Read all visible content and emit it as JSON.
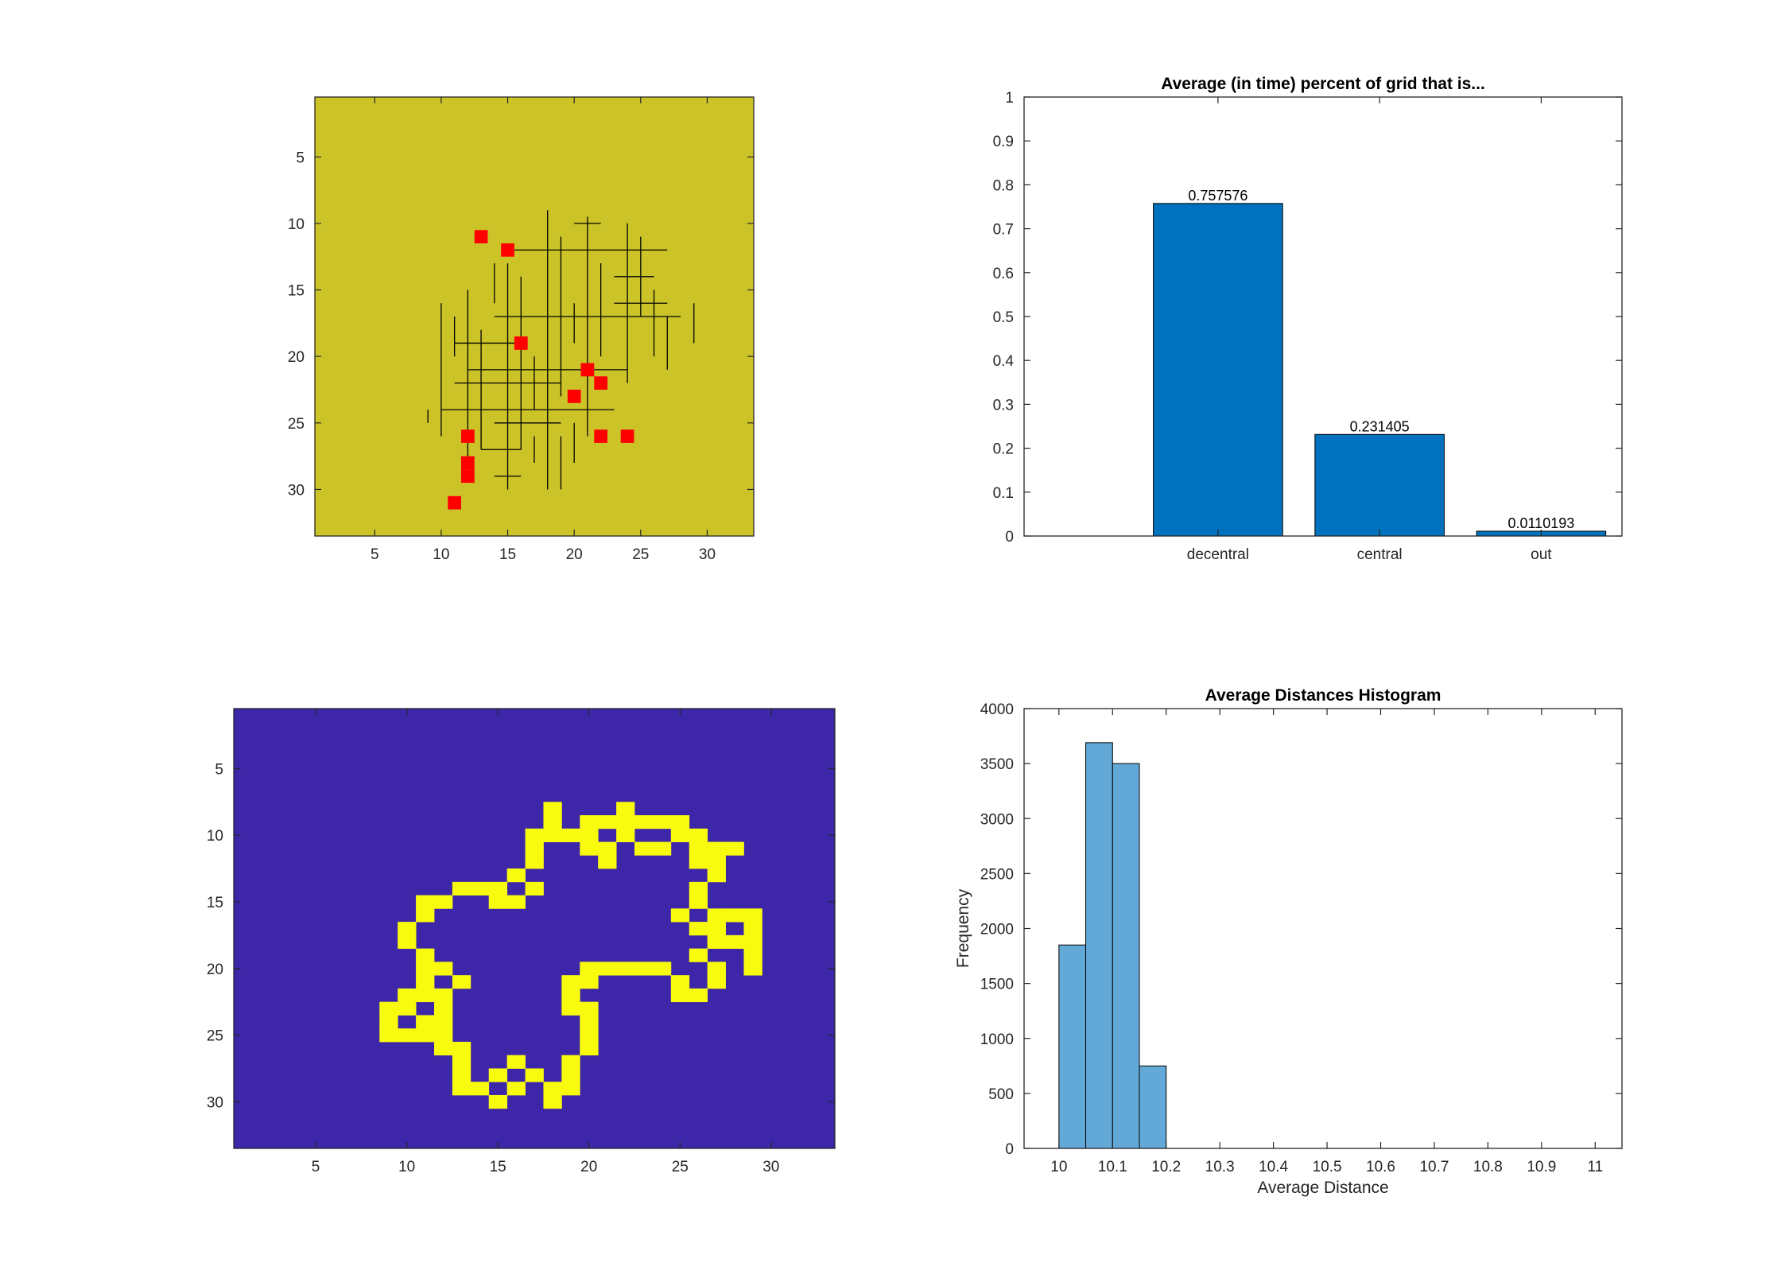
{
  "colors": {
    "yellow_bg": "#CBC328",
    "red_cell": "#FF0000",
    "blue_bg": "#3D26A8",
    "yellow_cell": "#F9FB0E",
    "bar_dark": "#0072BD",
    "hist_bar": "#63A9D8",
    "axis": "#262626"
  },
  "chart_data": [
    {
      "type": "heatmap",
      "panel": "top-left",
      "xlim": [
        0.5,
        33.5
      ],
      "ylim": [
        0.5,
        33.5
      ],
      "y_reversed": true,
      "xticks": [
        5,
        10,
        15,
        20,
        25,
        30
      ],
      "yticks": [
        5,
        10,
        15,
        20,
        25,
        30
      ],
      "red_cells": [
        [
          13,
          11
        ],
        [
          15,
          12
        ],
        [
          16,
          19
        ],
        [
          21,
          21
        ],
        [
          22,
          22
        ],
        [
          20,
          23
        ],
        [
          12,
          26
        ],
        [
          22,
          26
        ],
        [
          24,
          26
        ],
        [
          12,
          28
        ],
        [
          12,
          29
        ],
        [
          11,
          31
        ]
      ],
      "network_segments": [
        [
          [
            18,
            9
          ],
          [
            18,
            30
          ]
        ],
        [
          [
            15,
            12
          ],
          [
            27,
            12
          ]
        ],
        [
          [
            14,
            17
          ],
          [
            28,
            17
          ]
        ],
        [
          [
            12,
            21
          ],
          [
            24,
            21
          ]
        ],
        [
          [
            10,
            24
          ],
          [
            23,
            24
          ]
        ],
        [
          [
            12,
            15
          ],
          [
            12,
            28
          ]
        ],
        [
          [
            21,
            9.5
          ],
          [
            21,
            26
          ]
        ],
        [
          [
            24,
            10
          ],
          [
            24,
            22
          ]
        ],
        [
          [
            15,
            13
          ],
          [
            15,
            30
          ]
        ],
        [
          [
            10,
            16
          ],
          [
            10,
            26
          ]
        ],
        [
          [
            19,
            11
          ],
          [
            19,
            23
          ]
        ],
        [
          [
            16,
            14
          ],
          [
            16,
            27
          ]
        ],
        [
          [
            22,
            13
          ],
          [
            22,
            20
          ]
        ],
        [
          [
            13,
            18
          ],
          [
            13,
            27
          ]
        ],
        [
          [
            26,
            15
          ],
          [
            26,
            20
          ]
        ],
        [
          [
            11,
            19
          ],
          [
            16,
            19
          ]
        ],
        [
          [
            20,
            10
          ],
          [
            22,
            10
          ]
        ],
        [
          [
            17,
            26
          ],
          [
            17,
            28
          ]
        ],
        [
          [
            19,
            26
          ],
          [
            19,
            30
          ]
        ],
        [
          [
            14,
            29
          ],
          [
            16,
            29
          ]
        ],
        [
          [
            23,
            16
          ],
          [
            27,
            16
          ]
        ],
        [
          [
            11,
            22
          ],
          [
            19,
            22
          ]
        ],
        [
          [
            9,
            24
          ],
          [
            9,
            25
          ]
        ],
        [
          [
            27,
            17
          ],
          [
            27,
            21
          ]
        ],
        [
          [
            20,
            16
          ],
          [
            20,
            19
          ]
        ],
        [
          [
            14,
            25
          ],
          [
            19,
            25
          ]
        ],
        [
          [
            13,
            27
          ],
          [
            16,
            27
          ]
        ],
        [
          [
            25,
            11
          ],
          [
            25,
            17
          ]
        ],
        [
          [
            23,
            14
          ],
          [
            26,
            14
          ]
        ],
        [
          [
            29,
            16
          ],
          [
            29,
            19
          ]
        ],
        [
          [
            17,
            20
          ],
          [
            17,
            24
          ]
        ],
        [
          [
            11,
            17
          ],
          [
            11,
            20
          ]
        ],
        [
          [
            20,
            25
          ],
          [
            20,
            28
          ]
        ],
        [
          [
            14,
            13
          ],
          [
            14,
            16
          ]
        ]
      ]
    },
    {
      "type": "bar",
      "panel": "top-right",
      "title": "Average (in time) percent of grid that is...",
      "categories": [
        "decentral",
        "central",
        "out"
      ],
      "values": [
        0.757576,
        0.231405,
        0.0110193
      ],
      "data_labels": [
        "0.757576",
        "0.231405",
        "0.0110193"
      ],
      "xlim": [
        -0.2,
        3.5
      ],
      "ylim": [
        0,
        1
      ],
      "yticks": [
        "0",
        "0.1",
        "0.2",
        "0.3",
        "0.4",
        "0.5",
        "0.6",
        "0.7",
        "0.8",
        "0.9",
        "1"
      ]
    },
    {
      "type": "heatmap",
      "panel": "bottom-left",
      "xlim": [
        0.5,
        33.5
      ],
      "ylim": [
        0.5,
        33.5
      ],
      "y_reversed": true,
      "xticks": [
        5,
        10,
        15,
        20,
        25,
        30
      ],
      "yticks": [
        5,
        10,
        15,
        20,
        25,
        30
      ],
      "yellow_cells": [
        [
          18,
          8
        ],
        [
          22,
          8
        ],
        [
          18,
          9
        ],
        [
          20,
          9
        ],
        [
          21,
          9
        ],
        [
          22,
          9
        ],
        [
          23,
          9
        ],
        [
          24,
          9
        ],
        [
          25,
          9
        ],
        [
          17,
          10
        ],
        [
          18,
          10
        ],
        [
          19,
          10
        ],
        [
          20,
          10
        ],
        [
          22,
          10
        ],
        [
          25,
          10
        ],
        [
          26,
          10
        ],
        [
          17,
          11
        ],
        [
          20,
          11
        ],
        [
          21,
          11
        ],
        [
          23,
          11
        ],
        [
          24,
          11
        ],
        [
          26,
          11
        ],
        [
          27,
          11
        ],
        [
          28,
          11
        ],
        [
          17,
          12
        ],
        [
          21,
          12
        ],
        [
          26,
          12
        ],
        [
          27,
          12
        ],
        [
          16,
          13
        ],
        [
          27,
          13
        ],
        [
          13,
          14
        ],
        [
          14,
          14
        ],
        [
          15,
          14
        ],
        [
          17,
          14
        ],
        [
          26,
          14
        ],
        [
          11,
          15
        ],
        [
          12,
          15
        ],
        [
          15,
          15
        ],
        [
          16,
          15
        ],
        [
          26,
          15
        ],
        [
          11,
          16
        ],
        [
          25,
          16
        ],
        [
          27,
          16
        ],
        [
          28,
          16
        ],
        [
          29,
          16
        ],
        [
          10,
          17
        ],
        [
          26,
          17
        ],
        [
          27,
          17
        ],
        [
          29,
          17
        ],
        [
          10,
          18
        ],
        [
          27,
          18
        ],
        [
          28,
          18
        ],
        [
          29,
          18
        ],
        [
          11,
          19
        ],
        [
          26,
          19
        ],
        [
          29,
          19
        ],
        [
          11,
          20
        ],
        [
          12,
          20
        ],
        [
          20,
          20
        ],
        [
          21,
          20
        ],
        [
          22,
          20
        ],
        [
          23,
          20
        ],
        [
          24,
          20
        ],
        [
          27,
          20
        ],
        [
          29,
          20
        ],
        [
          11,
          21
        ],
        [
          13,
          21
        ],
        [
          19,
          21
        ],
        [
          20,
          21
        ],
        [
          25,
          21
        ],
        [
          27,
          21
        ],
        [
          10,
          22
        ],
        [
          11,
          22
        ],
        [
          12,
          22
        ],
        [
          19,
          22
        ],
        [
          25,
          22
        ],
        [
          26,
          22
        ],
        [
          9,
          23
        ],
        [
          10,
          23
        ],
        [
          12,
          23
        ],
        [
          19,
          23
        ],
        [
          20,
          23
        ],
        [
          9,
          24
        ],
        [
          11,
          24
        ],
        [
          12,
          24
        ],
        [
          20,
          24
        ],
        [
          9,
          25
        ],
        [
          10,
          25
        ],
        [
          11,
          25
        ],
        [
          12,
          25
        ],
        [
          20,
          25
        ],
        [
          12,
          26
        ],
        [
          13,
          26
        ],
        [
          20,
          26
        ],
        [
          13,
          27
        ],
        [
          16,
          27
        ],
        [
          19,
          27
        ],
        [
          13,
          28
        ],
        [
          15,
          28
        ],
        [
          17,
          28
        ],
        [
          19,
          28
        ],
        [
          13,
          29
        ],
        [
          14,
          29
        ],
        [
          16,
          29
        ],
        [
          18,
          29
        ],
        [
          19,
          29
        ],
        [
          15,
          30
        ],
        [
          18,
          30
        ]
      ]
    },
    {
      "type": "bar",
      "panel": "bottom-right",
      "title": "Average Distances Histogram",
      "xlabel": "Average Distance",
      "ylabel": "Frequency",
      "bin_edges": [
        10.0,
        10.05,
        10.1,
        10.15,
        10.2
      ],
      "counts": [
        1850,
        3690,
        3500,
        750
      ],
      "xlim": [
        9.935,
        11.05
      ],
      "ylim": [
        0,
        4000
      ],
      "xticks": [
        "10",
        "10.1",
        "10.2",
        "10.3",
        "10.4",
        "10.5",
        "10.6",
        "10.7",
        "10.8",
        "10.9",
        "11"
      ],
      "yticks": [
        "0",
        "500",
        "1000",
        "1500",
        "2000",
        "2500",
        "3000",
        "3500",
        "4000"
      ]
    }
  ]
}
